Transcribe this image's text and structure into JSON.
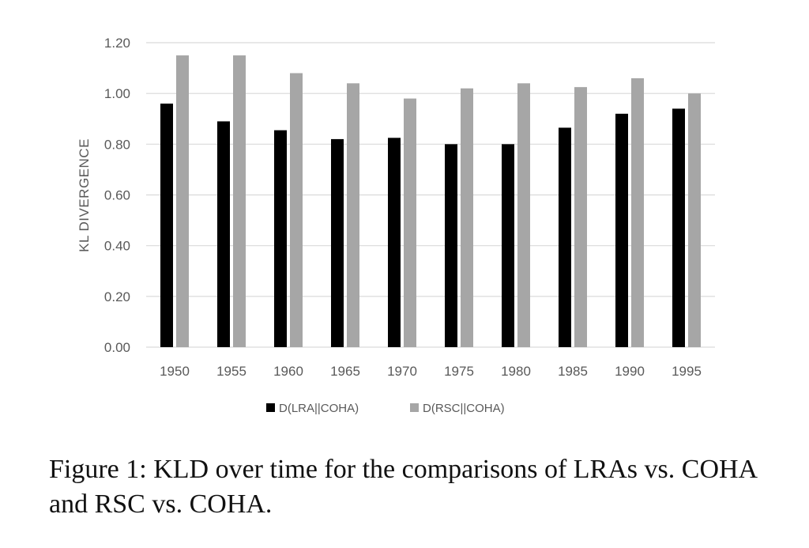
{
  "chart_data": {
    "type": "bar",
    "categories": [
      "1950",
      "1955",
      "1960",
      "1965",
      "1970",
      "1975",
      "1980",
      "1985",
      "1990",
      "1995"
    ],
    "series": [
      {
        "name": "D(LRA||COHA)",
        "color": "#000000",
        "values": [
          0.96,
          0.89,
          0.855,
          0.82,
          0.825,
          0.8,
          0.8,
          0.865,
          0.92,
          0.94
        ]
      },
      {
        "name": "D(RSC||COHA)",
        "color": "#a6a6a6",
        "values": [
          1.15,
          1.15,
          1.08,
          1.04,
          0.98,
          1.02,
          1.04,
          1.025,
          1.06,
          1.0
        ]
      }
    ],
    "ylabel": "KL DIVERGENCE",
    "xlabel": "",
    "ylim": [
      0,
      1.2
    ],
    "yticks": [
      "0.00",
      "0.20",
      "0.40",
      "0.60",
      "0.80",
      "1.00",
      "1.20"
    ],
    "grid": true,
    "legend_position": "bottom",
    "gridline_color": "#d9d9d9"
  },
  "caption": "Figure 1: KLD over time for the comparisons of LRAs vs. COHA and RSC vs. COHA."
}
